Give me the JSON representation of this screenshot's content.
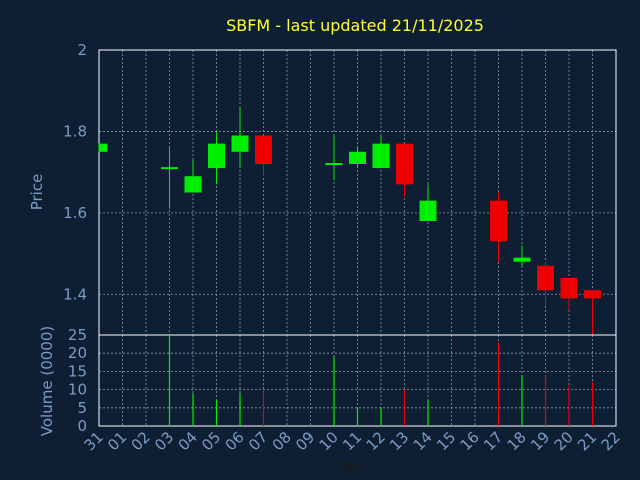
{
  "chart_data": {
    "type": "candlestick",
    "title": "SBFM - last updated 21/11/2025",
    "xlabel": "Day",
    "x_ticks": [
      "31",
      "01",
      "02",
      "03",
      "04",
      "05",
      "06",
      "07",
      "08",
      "09",
      "10",
      "11",
      "12",
      "13",
      "14",
      "15",
      "16",
      "17",
      "18",
      "19",
      "20",
      "21",
      "22"
    ],
    "price_panel": {
      "ylabel": "Price",
      "ylim": [
        1.3,
        2.0
      ],
      "y_ticks": [
        "2",
        "1.8",
        "1.6",
        "1.4"
      ],
      "candles": [
        {
          "day": "31",
          "open": 1.75,
          "high": 1.77,
          "low": 1.75,
          "close": 1.77
        },
        {
          "day": "03",
          "open": 1.71,
          "high": 1.76,
          "low": 1.61,
          "close": 1.71
        },
        {
          "day": "04",
          "open": 1.65,
          "high": 1.73,
          "low": 1.65,
          "close": 1.69
        },
        {
          "day": "05",
          "open": 1.71,
          "high": 1.8,
          "low": 1.67,
          "close": 1.77
        },
        {
          "day": "06",
          "open": 1.75,
          "high": 1.86,
          "low": 1.71,
          "close": 1.79
        },
        {
          "day": "07",
          "open": 1.79,
          "high": 1.79,
          "low": 1.69,
          "close": 1.72
        },
        {
          "day": "10",
          "open": 1.72,
          "high": 1.79,
          "low": 1.68,
          "close": 1.72
        },
        {
          "day": "11",
          "open": 1.72,
          "high": 1.76,
          "low": 1.71,
          "close": 1.75
        },
        {
          "day": "12",
          "open": 1.71,
          "high": 1.79,
          "low": 1.71,
          "close": 1.77
        },
        {
          "day": "13",
          "open": 1.77,
          "high": 1.77,
          "low": 1.64,
          "close": 1.67
        },
        {
          "day": "14",
          "open": 1.58,
          "high": 1.67,
          "low": 1.58,
          "close": 1.63
        },
        {
          "day": "17",
          "open": 1.63,
          "high": 1.65,
          "low": 1.48,
          "close": 1.53
        },
        {
          "day": "18",
          "open": 1.48,
          "high": 1.52,
          "low": 1.47,
          "close": 1.49
        },
        {
          "day": "19",
          "open": 1.47,
          "high": 1.48,
          "low": 1.37,
          "close": 1.41
        },
        {
          "day": "20",
          "open": 1.44,
          "high": 1.44,
          "low": 1.36,
          "close": 1.39
        },
        {
          "day": "21",
          "open": 1.41,
          "high": 1.41,
          "low": 1.3,
          "close": 1.39
        }
      ]
    },
    "volume_panel": {
      "ylabel": "Volume (0000)",
      "ylim": [
        0,
        25
      ],
      "y_ticks": [
        "25",
        "20",
        "15",
        "10",
        "5",
        "0"
      ],
      "bars": [
        {
          "day": "03",
          "value": 25,
          "direction": "up"
        },
        {
          "day": "04",
          "value": 9,
          "direction": "up"
        },
        {
          "day": "05",
          "value": 7,
          "direction": "up"
        },
        {
          "day": "06",
          "value": 9,
          "direction": "up"
        },
        {
          "day": "07",
          "value": 10,
          "direction": "down"
        },
        {
          "day": "10",
          "value": 19,
          "direction": "up"
        },
        {
          "day": "11",
          "value": 5,
          "direction": "up"
        },
        {
          "day": "12",
          "value": 5,
          "direction": "up"
        },
        {
          "day": "13",
          "value": 10,
          "direction": "down"
        },
        {
          "day": "14",
          "value": 7,
          "direction": "up"
        },
        {
          "day": "17",
          "value": 23,
          "direction": "down"
        },
        {
          "day": "18",
          "value": 14,
          "direction": "up"
        },
        {
          "day": "19",
          "value": 14,
          "direction": "down"
        },
        {
          "day": "20",
          "value": 11,
          "direction": "down"
        },
        {
          "day": "21",
          "value": 12,
          "direction": "down"
        }
      ]
    },
    "grid": true,
    "colors": {
      "background": "#0e1f33",
      "title": "#ffff33",
      "axis_text": "#7a9cc6",
      "grid": "#8a9aae",
      "frame": "#ffffff",
      "up": "#00ee00",
      "down": "#ee0000"
    }
  }
}
